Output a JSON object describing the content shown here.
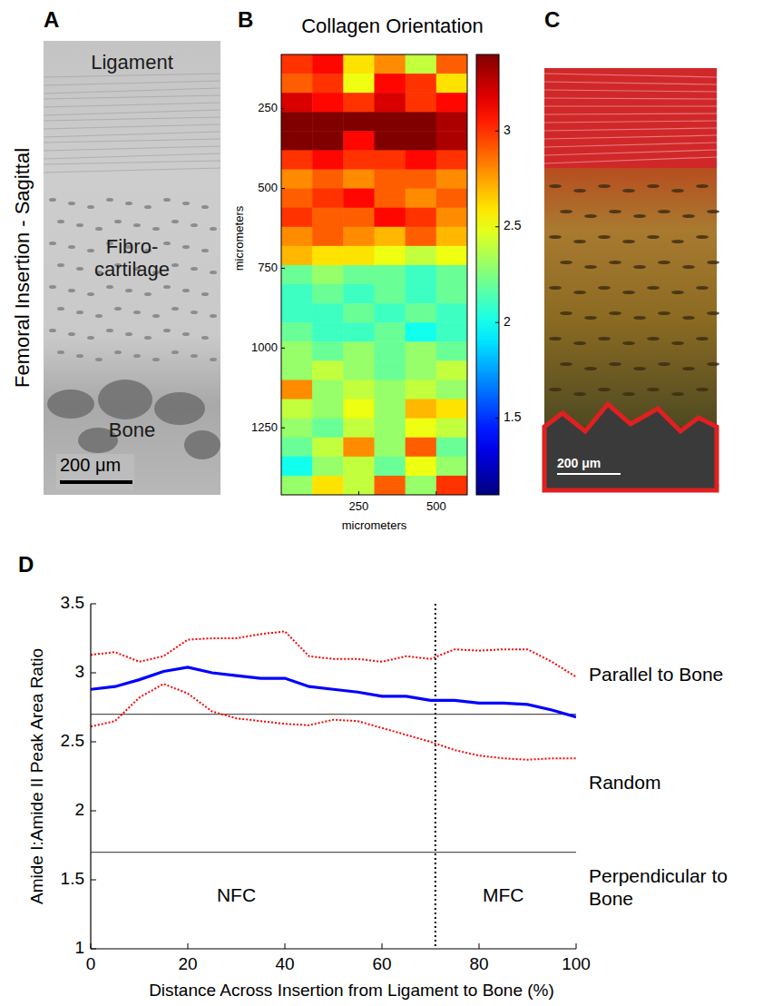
{
  "figure": {
    "side_title": "Femoral Insertion - Sagittal"
  },
  "micrographs": [
    {
      "panel": "A",
      "regions": [
        "Ligament",
        "Fibro-cartilage",
        "Bone"
      ],
      "scale_bar": "200 μm"
    },
    {
      "panel": "C",
      "scale_bar": "200 μm"
    }
  ],
  "chart_data": [
    {
      "panel": "B",
      "type": "heatmap",
      "title": "Collagen Orientation",
      "xlabel": "micrometers",
      "ylabel": "micrometers",
      "xlim": [
        0,
        600
      ],
      "ylim": [
        80,
        1460
      ],
      "xticks": [
        250,
        500
      ],
      "yticks": [
        250,
        500,
        750,
        1000,
        1250
      ],
      "x_edges": [
        0,
        100,
        200,
        300,
        400,
        500,
        600
      ],
      "y_edges": [
        80,
        140,
        200,
        260,
        320,
        380,
        440,
        500,
        560,
        620,
        680,
        740,
        800,
        860,
        920,
        980,
        1040,
        1100,
        1160,
        1220,
        1280,
        1340,
        1400,
        1460
      ],
      "cells": [
        [
          3.0,
          3.1,
          2.6,
          2.8,
          2.4,
          2.9
        ],
        [
          2.9,
          3.0,
          2.5,
          3.1,
          3.0,
          2.6
        ],
        [
          3.2,
          3.1,
          3.0,
          3.2,
          3.0,
          3.1
        ],
        [
          3.4,
          3.4,
          3.4,
          3.4,
          3.4,
          3.3
        ],
        [
          3.4,
          3.4,
          3.1,
          3.4,
          3.4,
          3.3
        ],
        [
          3.0,
          3.1,
          3.0,
          3.0,
          3.1,
          3.0
        ],
        [
          2.8,
          2.9,
          2.8,
          2.9,
          2.9,
          2.8
        ],
        [
          2.9,
          3.0,
          3.1,
          2.9,
          2.8,
          2.9
        ],
        [
          3.0,
          2.9,
          2.9,
          3.1,
          3.0,
          2.8
        ],
        [
          2.8,
          2.9,
          2.8,
          2.7,
          2.9,
          2.7
        ],
        [
          2.7,
          2.6,
          2.6,
          2.5,
          2.4,
          2.5
        ],
        [
          2.2,
          2.3,
          2.2,
          2.2,
          2.1,
          2.2
        ],
        [
          2.1,
          2.2,
          2.1,
          2.2,
          2.1,
          2.2
        ],
        [
          2.1,
          2.1,
          2.2,
          2.1,
          2.2,
          2.1
        ],
        [
          2.2,
          2.1,
          2.1,
          2.2,
          2.0,
          2.1
        ],
        [
          2.3,
          2.2,
          2.3,
          2.2,
          2.3,
          2.2
        ],
        [
          2.3,
          2.4,
          2.3,
          2.2,
          2.3,
          2.4
        ],
        [
          2.8,
          2.3,
          2.4,
          2.3,
          2.4,
          2.3
        ],
        [
          2.4,
          2.3,
          2.5,
          2.3,
          2.7,
          2.6
        ],
        [
          2.3,
          2.2,
          2.4,
          2.3,
          2.5,
          2.4
        ],
        [
          2.2,
          2.4,
          2.8,
          2.3,
          2.9,
          2.2
        ],
        [
          2.0,
          2.3,
          2.4,
          2.2,
          2.5,
          2.3
        ],
        [
          2.3,
          2.6,
          2.4,
          2.9,
          2.3,
          3.0
        ]
      ],
      "color": "jet",
      "color_range": [
        1.1,
        3.4
      ],
      "color_ticks": [
        1.5,
        2,
        2.5,
        3
      ]
    },
    {
      "panel": "D",
      "type": "line",
      "xlabel": "Distance Across Insertion from Ligament to Bone (%)",
      "ylabel": "Amide I:Amide II Peak Area Ratio",
      "xlim": [
        0,
        100
      ],
      "ylim": [
        1,
        3.5
      ],
      "xticks": [
        0,
        20,
        40,
        60,
        80,
        100
      ],
      "yticks": [
        1,
        1.5,
        2,
        2.5,
        3,
        3.5
      ],
      "x": [
        0,
        5,
        10,
        15,
        20,
        25,
        30,
        35,
        40,
        45,
        50,
        55,
        60,
        65,
        70,
        75,
        80,
        85,
        90,
        95,
        100
      ],
      "series": [
        {
          "color": "#ff0000",
          "line_style": "dotted",
          "values": [
            3.13,
            3.15,
            3.08,
            3.12,
            3.24,
            3.25,
            3.25,
            3.28,
            3.3,
            3.12,
            3.1,
            3.1,
            3.08,
            3.12,
            3.1,
            3.17,
            3.16,
            3.17,
            3.17,
            3.08,
            2.97
          ]
        },
        {
          "color": "#0000ff",
          "line_style": "solid",
          "values": [
            2.88,
            2.9,
            2.95,
            3.01,
            3.04,
            3.0,
            2.98,
            2.96,
            2.96,
            2.9,
            2.88,
            2.86,
            2.83,
            2.83,
            2.8,
            2.8,
            2.78,
            2.78,
            2.77,
            2.73,
            2.68
          ]
        },
        {
          "color": "#ff0000",
          "line_style": "dotted",
          "values": [
            2.61,
            2.65,
            2.82,
            2.92,
            2.85,
            2.72,
            2.67,
            2.65,
            2.63,
            2.62,
            2.66,
            2.65,
            2.6,
            2.55,
            2.5,
            2.44,
            2.4,
            2.38,
            2.37,
            2.38,
            2.38
          ]
        }
      ],
      "reference_lines": {
        "y": [
          2.7,
          1.7
        ],
        "x": [
          71
        ]
      },
      "annotations": [
        {
          "text": "NFC",
          "x": 30,
          "y": 1.38
        },
        {
          "text": "MFC",
          "x": 85,
          "y": 1.38
        }
      ],
      "region_labels": [
        {
          "text": "Parallel to Bone",
          "y": 2.98
        },
        {
          "text": "Random",
          "y": 2.2
        },
        {
          "text": "Perpendicular to Bone",
          "y": 1.44
        }
      ]
    }
  ]
}
